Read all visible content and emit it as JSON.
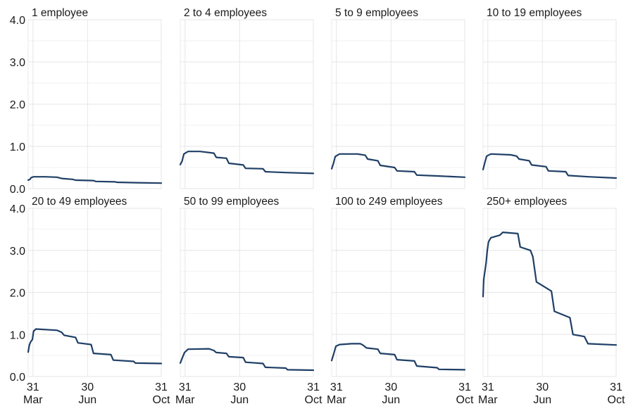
{
  "chart_data": {
    "type": "line",
    "layout": "small-multiples",
    "grid": true,
    "line_color": "#1f3f66",
    "panel_background": "#ffffff",
    "grid_color": "#e6e6e6",
    "ylim": [
      0,
      4
    ],
    "y_ticks": [
      "0.0",
      "1.0",
      "2.0",
      "3.0",
      "4.0"
    ],
    "y_tick_values": [
      0,
      1,
      2,
      3,
      4
    ],
    "x_range": [
      "2020-03-23",
      "2020-10-31"
    ],
    "x_ticks": [
      {
        "date": "2020-03-31",
        "day": "31",
        "month": "Mar"
      },
      {
        "date": "2020-06-30",
        "day": "30",
        "month": "Jun"
      },
      {
        "date": "2020-10-31",
        "day": "31",
        "month": "Oct"
      }
    ],
    "panels": [
      {
        "title": "1 employee",
        "points": [
          [
            "2020-03-23",
            0.2
          ],
          [
            "2020-03-26",
            0.22
          ],
          [
            "2020-03-28",
            0.26
          ],
          [
            "2020-04-01",
            0.28
          ],
          [
            "2020-04-20",
            0.28
          ],
          [
            "2020-05-10",
            0.27
          ],
          [
            "2020-05-18",
            0.24
          ],
          [
            "2020-06-05",
            0.22
          ],
          [
            "2020-06-10",
            0.2
          ],
          [
            "2020-07-10",
            0.19
          ],
          [
            "2020-07-14",
            0.17
          ],
          [
            "2020-08-15",
            0.16
          ],
          [
            "2020-08-18",
            0.15
          ],
          [
            "2020-09-20",
            0.14
          ],
          [
            "2020-10-31",
            0.13
          ]
        ]
      },
      {
        "title": "2 to 4 employees",
        "points": [
          [
            "2020-03-23",
            0.57
          ],
          [
            "2020-03-26",
            0.65
          ],
          [
            "2020-03-29",
            0.82
          ],
          [
            "2020-04-05",
            0.88
          ],
          [
            "2020-04-25",
            0.88
          ],
          [
            "2020-05-18",
            0.84
          ],
          [
            "2020-05-22",
            0.74
          ],
          [
            "2020-06-08",
            0.72
          ],
          [
            "2020-06-12",
            0.6
          ],
          [
            "2020-07-06",
            0.56
          ],
          [
            "2020-07-10",
            0.48
          ],
          [
            "2020-08-08",
            0.47
          ],
          [
            "2020-08-12",
            0.4
          ],
          [
            "2020-09-15",
            0.38
          ],
          [
            "2020-10-31",
            0.36
          ]
        ]
      },
      {
        "title": "5 to 9 employees",
        "points": [
          [
            "2020-03-23",
            0.47
          ],
          [
            "2020-03-26",
            0.6
          ],
          [
            "2020-03-29",
            0.76
          ],
          [
            "2020-04-05",
            0.82
          ],
          [
            "2020-05-05",
            0.82
          ],
          [
            "2020-05-18",
            0.79
          ],
          [
            "2020-05-22",
            0.7
          ],
          [
            "2020-06-08",
            0.66
          ],
          [
            "2020-06-12",
            0.55
          ],
          [
            "2020-07-06",
            0.5
          ],
          [
            "2020-07-10",
            0.42
          ],
          [
            "2020-08-08",
            0.4
          ],
          [
            "2020-08-12",
            0.32
          ],
          [
            "2020-09-15",
            0.3
          ],
          [
            "2020-10-31",
            0.27
          ]
        ]
      },
      {
        "title": "10 to 19 employees",
        "points": [
          [
            "2020-03-23",
            0.45
          ],
          [
            "2020-03-26",
            0.62
          ],
          [
            "2020-03-29",
            0.77
          ],
          [
            "2020-04-05",
            0.82
          ],
          [
            "2020-05-08",
            0.8
          ],
          [
            "2020-05-18",
            0.77
          ],
          [
            "2020-05-22",
            0.7
          ],
          [
            "2020-06-08",
            0.66
          ],
          [
            "2020-06-12",
            0.56
          ],
          [
            "2020-07-06",
            0.52
          ],
          [
            "2020-07-10",
            0.42
          ],
          [
            "2020-08-08",
            0.4
          ],
          [
            "2020-08-12",
            0.31
          ],
          [
            "2020-09-15",
            0.28
          ],
          [
            "2020-10-31",
            0.25
          ]
        ]
      },
      {
        "title": "20 to 49 employees",
        "points": [
          [
            "2020-03-23",
            0.58
          ],
          [
            "2020-03-25",
            0.75
          ],
          [
            "2020-03-27",
            0.82
          ],
          [
            "2020-03-30",
            0.88
          ],
          [
            "2020-04-01",
            1.08
          ],
          [
            "2020-04-05",
            1.13
          ],
          [
            "2020-05-10",
            1.1
          ],
          [
            "2020-05-18",
            1.05
          ],
          [
            "2020-05-22",
            0.98
          ],
          [
            "2020-06-10",
            0.93
          ],
          [
            "2020-06-14",
            0.8
          ],
          [
            "2020-07-06",
            0.76
          ],
          [
            "2020-07-10",
            0.55
          ],
          [
            "2020-08-08",
            0.52
          ],
          [
            "2020-08-12",
            0.39
          ],
          [
            "2020-09-15",
            0.36
          ],
          [
            "2020-09-18",
            0.32
          ],
          [
            "2020-10-31",
            0.31
          ]
        ]
      },
      {
        "title": "50 to 99 employees",
        "points": [
          [
            "2020-03-23",
            0.32
          ],
          [
            "2020-03-26",
            0.43
          ],
          [
            "2020-03-30",
            0.57
          ],
          [
            "2020-04-05",
            0.65
          ],
          [
            "2020-05-10",
            0.66
          ],
          [
            "2020-05-18",
            0.62
          ],
          [
            "2020-05-22",
            0.57
          ],
          [
            "2020-06-08",
            0.55
          ],
          [
            "2020-06-12",
            0.47
          ],
          [
            "2020-07-06",
            0.45
          ],
          [
            "2020-07-10",
            0.34
          ],
          [
            "2020-08-08",
            0.31
          ],
          [
            "2020-08-12",
            0.22
          ],
          [
            "2020-09-15",
            0.2
          ],
          [
            "2020-09-18",
            0.16
          ],
          [
            "2020-10-31",
            0.15
          ]
        ]
      },
      {
        "title": "100 to 249 employees",
        "points": [
          [
            "2020-03-23",
            0.38
          ],
          [
            "2020-03-26",
            0.52
          ],
          [
            "2020-03-30",
            0.72
          ],
          [
            "2020-04-05",
            0.76
          ],
          [
            "2020-04-25",
            0.78
          ],
          [
            "2020-05-10",
            0.78
          ],
          [
            "2020-05-15",
            0.74
          ],
          [
            "2020-05-20",
            0.68
          ],
          [
            "2020-06-08",
            0.65
          ],
          [
            "2020-06-12",
            0.55
          ],
          [
            "2020-07-06",
            0.52
          ],
          [
            "2020-07-10",
            0.4
          ],
          [
            "2020-08-08",
            0.37
          ],
          [
            "2020-08-12",
            0.25
          ],
          [
            "2020-09-15",
            0.21
          ],
          [
            "2020-09-18",
            0.17
          ],
          [
            "2020-10-31",
            0.16
          ]
        ]
      },
      {
        "title": "250+ employees",
        "points": [
          [
            "2020-03-23",
            1.9
          ],
          [
            "2020-03-24",
            2.3
          ],
          [
            "2020-03-26",
            2.5
          ],
          [
            "2020-03-28",
            2.7
          ],
          [
            "2020-03-30",
            3.0
          ],
          [
            "2020-04-01",
            3.2
          ],
          [
            "2020-04-05",
            3.3
          ],
          [
            "2020-04-20",
            3.36
          ],
          [
            "2020-04-25",
            3.43
          ],
          [
            "2020-05-20",
            3.4
          ],
          [
            "2020-05-24",
            3.08
          ],
          [
            "2020-06-10",
            3.0
          ],
          [
            "2020-06-14",
            2.85
          ],
          [
            "2020-06-20",
            2.25
          ],
          [
            "2020-07-15",
            2.03
          ],
          [
            "2020-07-20",
            1.55
          ],
          [
            "2020-08-15",
            1.4
          ],
          [
            "2020-08-20",
            1.0
          ],
          [
            "2020-09-08",
            0.95
          ],
          [
            "2020-09-14",
            0.78
          ],
          [
            "2020-10-31",
            0.75
          ]
        ]
      }
    ]
  }
}
